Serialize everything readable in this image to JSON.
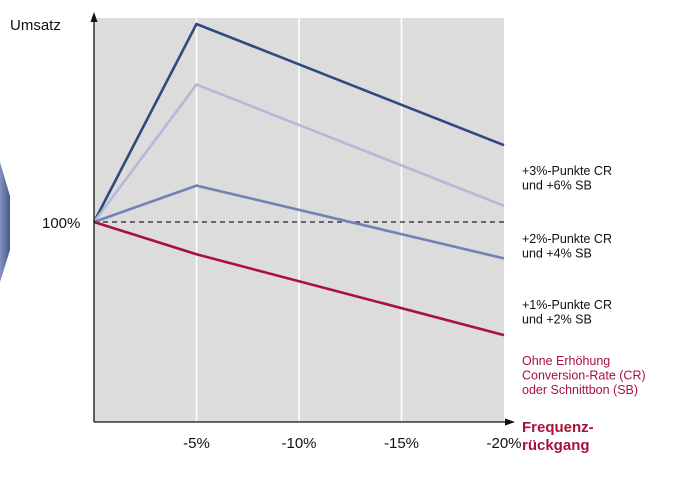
{
  "chart_data": {
    "type": "line",
    "ylabel": "Umsatz",
    "xlabel_line1": "Frequenz-",
    "xlabel_line2": "rückgang",
    "x": [
      0,
      -5,
      -20
    ],
    "x_ticks": [
      "-5%",
      "-10%",
      "-15%",
      "-20%"
    ],
    "x_tick_values": [
      -5,
      -10,
      -15,
      -20
    ],
    "y_reference_label": "100%",
    "y_reference_value": 100,
    "grid": true,
    "series": [
      {
        "id": "cr3",
        "label_lines": [
          "+3%-Punkte CR",
          "und +6% SB"
        ],
        "color": "#2f4a80",
        "values": [
          100,
          149,
          119
        ]
      },
      {
        "id": "cr2",
        "label_lines": [
          "+2%-Punkte CR",
          "und +4% SB"
        ],
        "color": "#b3b9d8",
        "values": [
          100,
          134,
          104
        ]
      },
      {
        "id": "cr1",
        "label_lines": [
          "+1%-Punkte CR",
          "und +2% SB"
        ],
        "color": "#7282b2",
        "values": [
          100,
          109,
          91
        ]
      },
      {
        "id": "base",
        "label_lines": [
          "Ohne Erhöhung",
          "Conversion-Rate (CR)",
          "oder Schnittbon (SB)"
        ],
        "color": "#a8123a",
        "values": [
          100,
          92,
          72
        ]
      }
    ]
  }
}
